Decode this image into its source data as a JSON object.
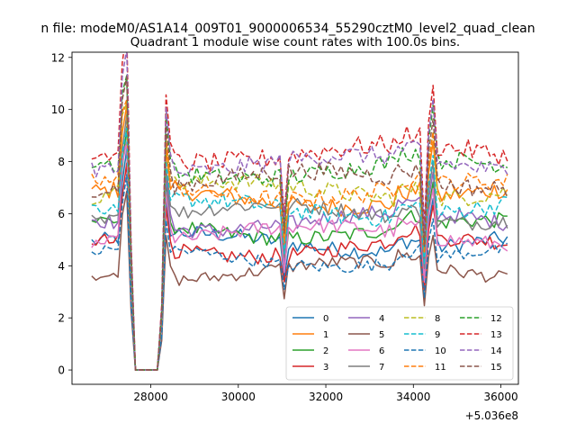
{
  "figure": {
    "suptitle": "n file: modeM0/AS1A14_009T01_9000006534_55290cztM0_level2_quad_clean",
    "offset_label": "+5.036e8"
  },
  "chart_data": {
    "type": "line",
    "title": "Quadrant 1 module wise count rates with 100.0s bins.",
    "xlabel": "",
    "ylabel": "",
    "x_offset": 503600000,
    "xlim": [
      26200,
      36400
    ],
    "ylim": [
      -0.55,
      12.2
    ],
    "xticks": [
      28000,
      30000,
      32000,
      34000,
      36000
    ],
    "xtick_labels": [
      "28000",
      "30000",
      "32000",
      "34000",
      "36000"
    ],
    "yticks": [
      0,
      2,
      4,
      6,
      8,
      10,
      12
    ],
    "ytick_labels": [
      "0",
      "2",
      "4",
      "6",
      "8",
      "10",
      "12"
    ],
    "grid": false,
    "legend_position": "lower-right",
    "legend_columns": 4,
    "x_start": 26650,
    "x_step": 100,
    "n_points": 96,
    "anomaly_notes": "Data drops to 0 between ~27650 and ~28150; spikes near 27450, 28350, 34450; dips near 31050 and 34250.",
    "series": [
      {
        "name": "0",
        "color": "#1f77b4",
        "dash": "solid",
        "base": 4.9,
        "amplitude": 0.3
      },
      {
        "name": "1",
        "color": "#ff7f0e",
        "dash": "solid",
        "base": 6.6,
        "amplitude": 0.35
      },
      {
        "name": "2",
        "color": "#2ca02c",
        "dash": "solid",
        "base": 5.4,
        "amplitude": 0.3
      },
      {
        "name": "3",
        "color": "#d62728",
        "dash": "solid",
        "base": 4.7,
        "amplitude": 0.3
      },
      {
        "name": "4",
        "color": "#9467bd",
        "dash": "solid",
        "base": 5.7,
        "amplitude": 0.3
      },
      {
        "name": "5",
        "color": "#8c564b",
        "dash": "solid",
        "base": 3.8,
        "amplitude": 0.25
      },
      {
        "name": "6",
        "color": "#e377c2",
        "dash": "solid",
        "base": 5.2,
        "amplitude": 0.3
      },
      {
        "name": "7",
        "color": "#7f7f7f",
        "dash": "solid",
        "base": 6.0,
        "amplitude": 0.3
      },
      {
        "name": "8",
        "color": "#bcbd22",
        "dash": "dashed",
        "base": 6.9,
        "amplitude": 0.35
      },
      {
        "name": "9",
        "color": "#17becf",
        "dash": "dashed",
        "base": 6.2,
        "amplitude": 0.35
      },
      {
        "name": "10",
        "color": "#1f77b4",
        "dash": "dashed",
        "base": 4.3,
        "amplitude": 0.25
      },
      {
        "name": "11",
        "color": "#ff7f0e",
        "dash": "dashed",
        "base": 6.9,
        "amplitude": 0.35
      },
      {
        "name": "12",
        "color": "#2ca02c",
        "dash": "dashed",
        "base": 7.7,
        "amplitude": 0.35
      },
      {
        "name": "13",
        "color": "#d62728",
        "dash": "dashed",
        "base": 8.3,
        "amplitude": 0.4
      },
      {
        "name": "14",
        "color": "#9467bd",
        "dash": "dashed",
        "base": 7.9,
        "amplitude": 0.35
      },
      {
        "name": "15",
        "color": "#8c564b",
        "dash": "dashed",
        "base": 7.3,
        "amplitude": 0.35
      }
    ]
  }
}
